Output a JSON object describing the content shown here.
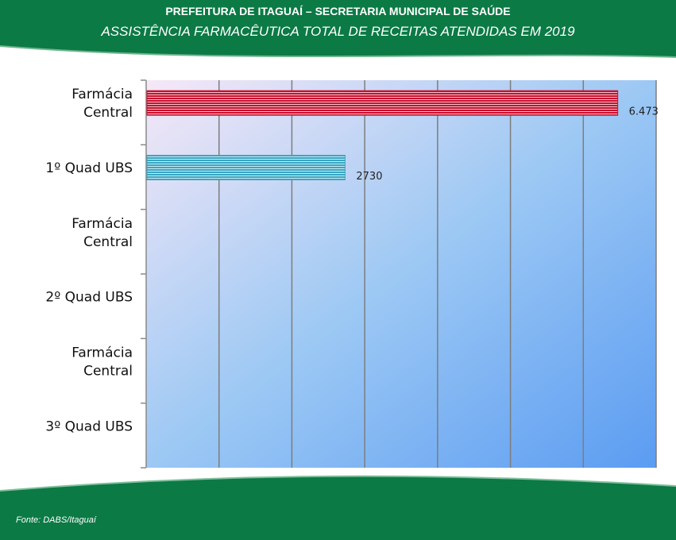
{
  "header": {
    "title": "PREFEITURA DE ITAGUAÍ – SECRETARIA MUNICIPAL DE SAÚDE",
    "subtitle": "ASSISTÊNCIA FARMACÊUTICA TOTAL DE RECEITAS ATENDIDAS EM 2019"
  },
  "footer": {
    "source": "Fonte: DABS/Itaguaí"
  },
  "colors": {
    "band_green": "#0b7a45",
    "bar_red": "#c8102e",
    "bar_teal": "#3aa6c2"
  },
  "chart_data": {
    "type": "bar",
    "orientation": "horizontal",
    "categories": [
      [
        "Farmácia",
        "Central"
      ],
      [
        "1º Quad UBS"
      ],
      [
        "Farmácia",
        "Central"
      ],
      [
        "2º Quad UBS"
      ],
      [
        "Farmácia",
        "Central"
      ],
      [
        "3º Quad UBS"
      ]
    ],
    "values": [
      6473,
      2730,
      null,
      null,
      null,
      null
    ],
    "data_labels": [
      "6.473",
      "2730",
      "",
      "",
      "",
      ""
    ],
    "bar_colors": [
      "#c8102e",
      "#3aa6c2",
      "",
      "",
      "",
      ""
    ],
    "xlim": [
      0,
      7000
    ],
    "x_gridlines": [
      0,
      1000,
      2000,
      3000,
      4000,
      5000,
      6000,
      7000
    ],
    "grid": true,
    "legend": "none"
  }
}
